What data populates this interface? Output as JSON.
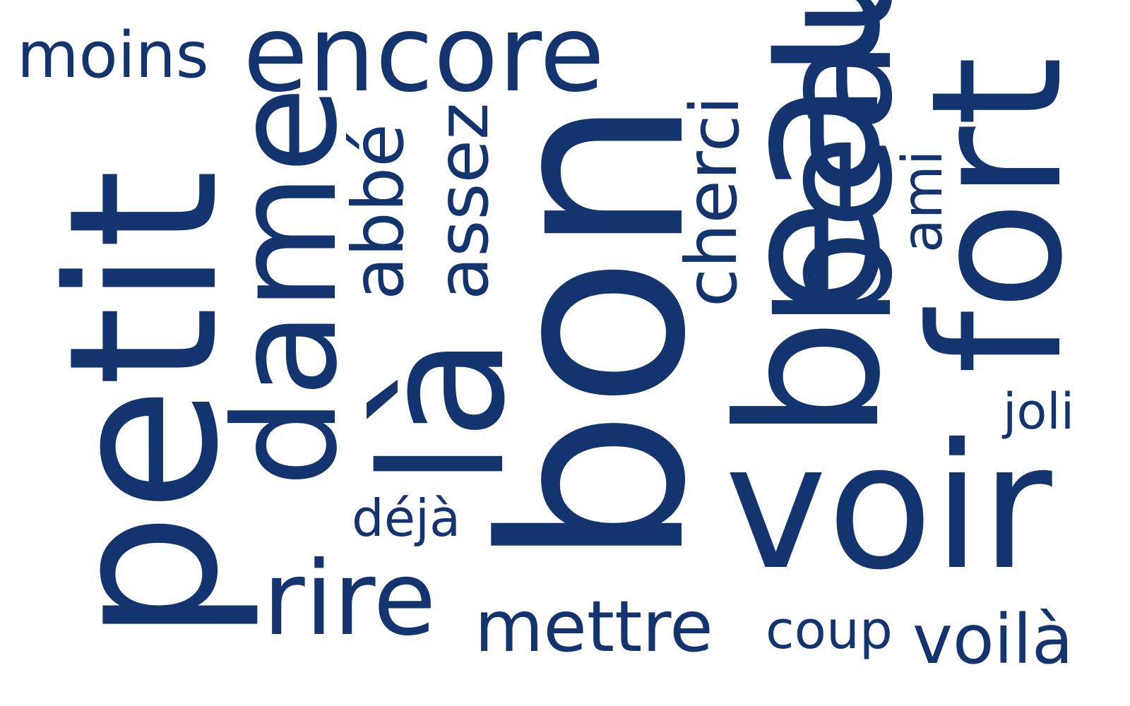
{
  "words": {
    "moins": "moins",
    "encore": "encore",
    "petit": "petit",
    "dame": "dame",
    "abbe": "abbé",
    "assez": "assez",
    "la": "là",
    "bon": "bon",
    "cher": "cher",
    "ci": "ci",
    "beau1": "beau",
    "beau2": "beau",
    "ami": "ami",
    "fort": "fort",
    "joli": "joli",
    "deja": "déjà",
    "voir": "voir",
    "rire": "rire",
    "mettre": "mettre",
    "coup": "coup",
    "voila": "voilà"
  },
  "colors": {
    "text": "#13346f",
    "background": "#ffffff"
  }
}
